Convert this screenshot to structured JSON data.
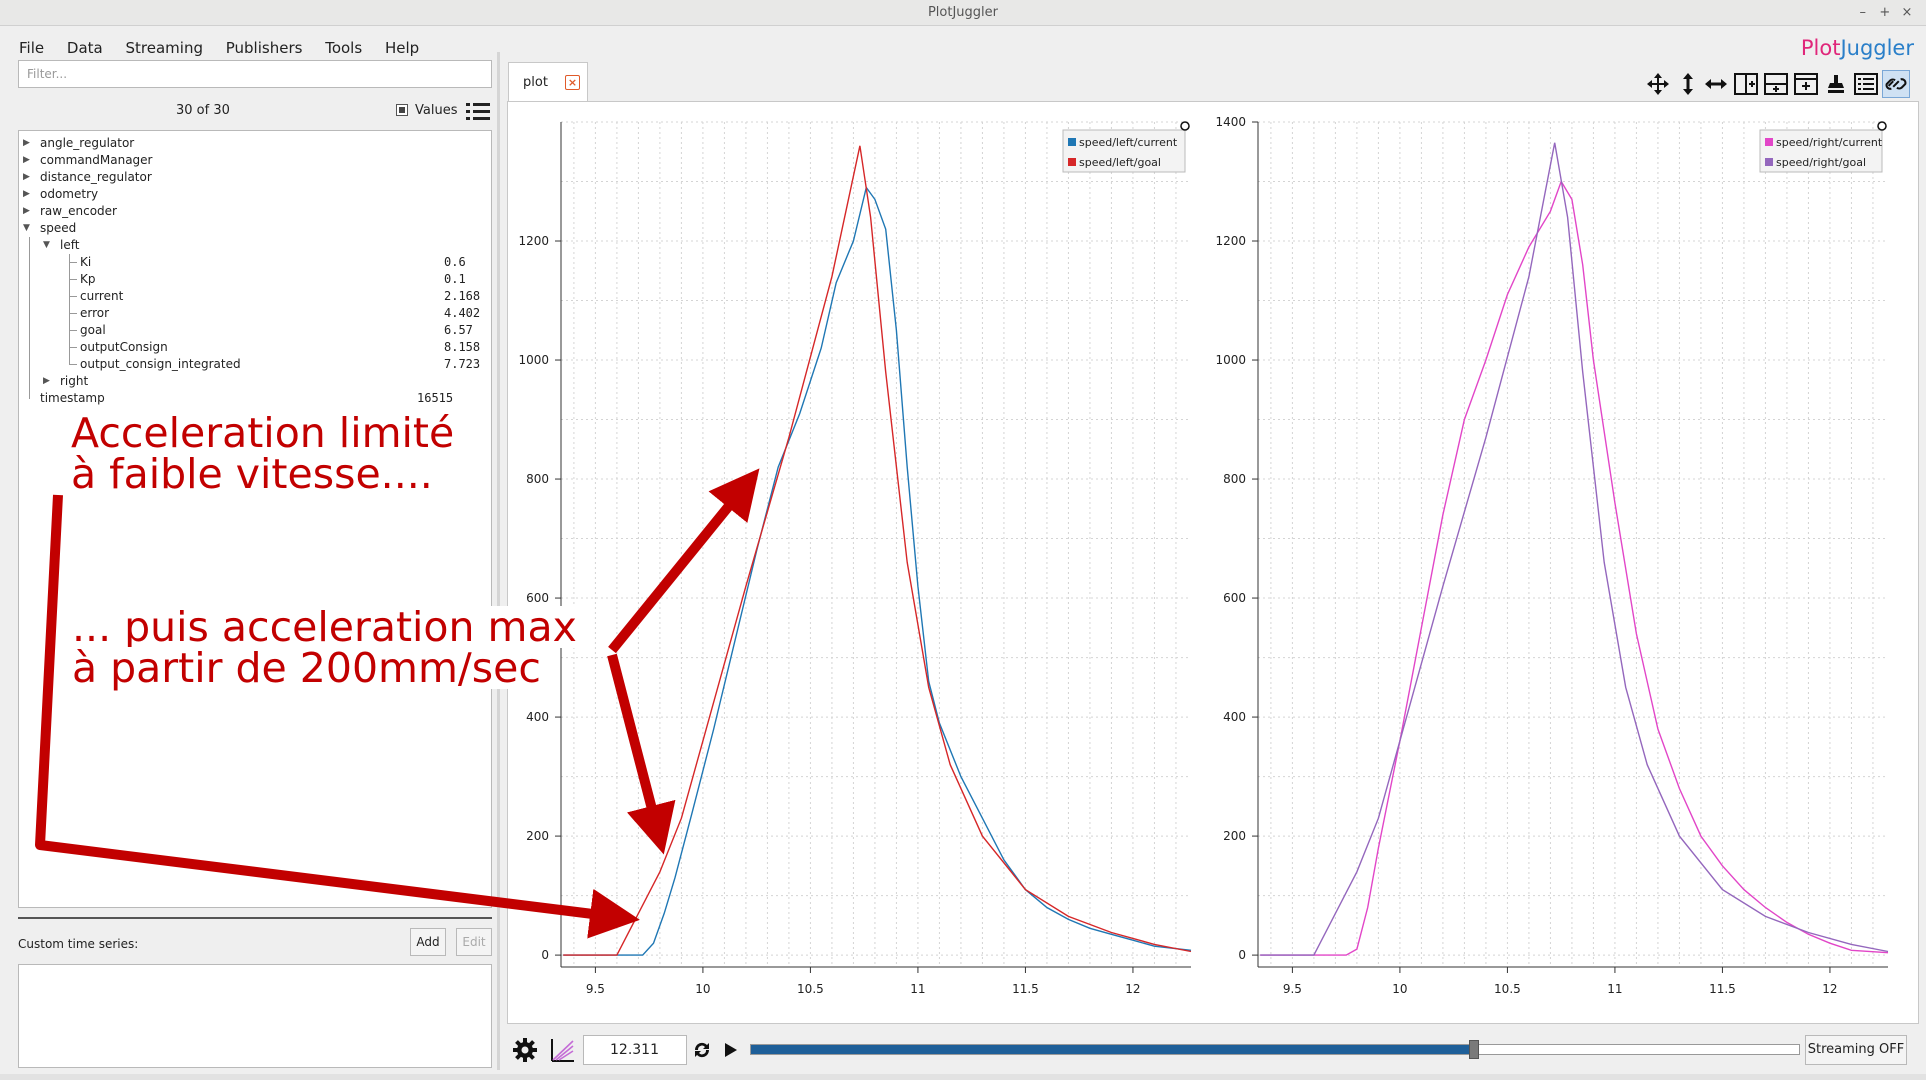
{
  "window": {
    "title": "PlotJuggler",
    "controls": [
      "–",
      "+",
      "×"
    ]
  },
  "menu": {
    "items": [
      "File",
      "Data",
      "Streaming",
      "Publishers",
      "Tools",
      "Help"
    ]
  },
  "brand": {
    "part1": "Plot",
    "part2": "Juggler"
  },
  "sidebar": {
    "filter_placeholder": "Filter...",
    "count": "30 of 30",
    "values_label": "Values",
    "values_checked": true,
    "tree": [
      {
        "label": "angle_regulator",
        "depth": 0,
        "expander": "collapsed"
      },
      {
        "label": "commandManager",
        "depth": 0,
        "expander": "collapsed"
      },
      {
        "label": "distance_regulator",
        "depth": 0,
        "expander": "collapsed"
      },
      {
        "label": "odometry",
        "depth": 0,
        "expander": "collapsed"
      },
      {
        "label": "raw_encoder",
        "depth": 0,
        "expander": "collapsed"
      },
      {
        "label": "speed",
        "depth": 0,
        "expander": "expanded"
      },
      {
        "label": "left",
        "depth": 1,
        "expander": "expanded"
      },
      {
        "label": "Ki",
        "depth": 2,
        "value": "0.6"
      },
      {
        "label": "Kp",
        "depth": 2,
        "value": "0.1"
      },
      {
        "label": "current",
        "depth": 2,
        "value": "2.168"
      },
      {
        "label": "error",
        "depth": 2,
        "value": "4.402"
      },
      {
        "label": "goal",
        "depth": 2,
        "value": "6.57"
      },
      {
        "label": "outputConsign",
        "depth": 2,
        "value": "8.158"
      },
      {
        "label": "output_consign_integrated",
        "depth": 2,
        "value": "7.723"
      },
      {
        "label": "right",
        "depth": 1,
        "expander": "collapsed"
      },
      {
        "label": "timestamp",
        "depth": 0,
        "value": "16515"
      }
    ],
    "custom_series_label": "Custom time series:",
    "add_label": "Add",
    "edit_label": "Edit"
  },
  "tab": {
    "label": "plot",
    "close_icon": "close-icon"
  },
  "toolbar": {
    "icons": [
      "move-icon",
      "zoom-vertical-icon",
      "zoom-horizontal-icon",
      "split-horizontal-icon",
      "split-vertical-icon",
      "add-plot-icon",
      "clear-icon",
      "legend-icon",
      "link-icon"
    ]
  },
  "annotations": {
    "text1_line1": "Acceleration limité",
    "text1_line2": "à faible vitesse....",
    "text2_line1": "... puis acceleration max",
    "text2_line2": "à partir de 200mm/sec",
    "color": "#c20000"
  },
  "playback": {
    "time_value": "12.311",
    "slider_position": 0.69,
    "streaming_label": "Streaming OFF",
    "icons": [
      "settings-icon",
      "time-offset-icon",
      "loop-icon",
      "play-icon"
    ]
  },
  "chart_data": [
    {
      "type": "line",
      "xlim": [
        9.34,
        12.27
      ],
      "ylim": [
        -20,
        1400
      ],
      "x_ticks": [
        9.5,
        10,
        10.5,
        11,
        11.5,
        12
      ],
      "y_ticks": [
        0,
        200,
        400,
        600,
        800,
        1000,
        1200
      ],
      "grid": true,
      "legend_position": "top-right",
      "series": [
        {
          "name": "speed/left/current",
          "color": "#1f77b4",
          "x": [
            9.35,
            9.65,
            9.72,
            9.77,
            9.82,
            9.87,
            9.95,
            10.05,
            10.15,
            10.25,
            10.35,
            10.45,
            10.55,
            10.62,
            10.7,
            10.76,
            10.8,
            10.85,
            10.9,
            10.95,
            11.0,
            11.05,
            11.1,
            11.2,
            11.3,
            11.4,
            11.5,
            11.6,
            11.7,
            11.8,
            11.9,
            12.0,
            12.1,
            12.27
          ],
          "y": [
            0,
            0,
            0,
            20,
            70,
            130,
            240,
            380,
            530,
            680,
            820,
            910,
            1020,
            1130,
            1200,
            1290,
            1270,
            1220,
            1050,
            820,
            620,
            460,
            390,
            300,
            230,
            160,
            110,
            80,
            60,
            45,
            35,
            25,
            15,
            8
          ]
        },
        {
          "name": "speed/left/goal",
          "color": "#d62728",
          "x": [
            9.35,
            9.6,
            9.7,
            9.8,
            9.9,
            10.0,
            10.2,
            10.4,
            10.6,
            10.73,
            10.78,
            10.85,
            10.95,
            11.05,
            11.15,
            11.3,
            11.5,
            11.7,
            11.9,
            12.1,
            12.27
          ],
          "y": [
            0,
            0,
            70,
            140,
            230,
            360,
            620,
            870,
            1140,
            1360,
            1240,
            980,
            660,
            450,
            320,
            200,
            110,
            65,
            38,
            18,
            6
          ]
        }
      ]
    },
    {
      "type": "line",
      "xlim": [
        9.34,
        12.27
      ],
      "ylim": [
        -20,
        1400
      ],
      "x_ticks": [
        9.5,
        10,
        10.5,
        11,
        11.5,
        12
      ],
      "y_ticks": [
        0,
        200,
        400,
        600,
        800,
        1000,
        1200,
        1400
      ],
      "grid": true,
      "legend_position": "top-right",
      "series": [
        {
          "name": "speed/right/current",
          "color": "#e246c8",
          "x": [
            9.35,
            9.75,
            9.8,
            9.85,
            9.9,
            10.0,
            10.1,
            10.2,
            10.3,
            10.4,
            10.5,
            10.6,
            10.7,
            10.75,
            10.8,
            10.85,
            10.9,
            11.0,
            11.1,
            11.2,
            11.3,
            11.4,
            11.5,
            11.6,
            11.7,
            11.8,
            11.9,
            12.0,
            12.1,
            12.27
          ],
          "y": [
            0,
            0,
            10,
            80,
            180,
            360,
            550,
            740,
            900,
            1000,
            1110,
            1190,
            1250,
            1300,
            1270,
            1160,
            1000,
            760,
            540,
            380,
            280,
            200,
            150,
            110,
            80,
            55,
            35,
            20,
            8,
            4
          ]
        },
        {
          "name": "speed/right/goal",
          "color": "#9467bd",
          "x": [
            9.35,
            9.6,
            9.7,
            9.8,
            9.9,
            10.0,
            10.2,
            10.4,
            10.6,
            10.72,
            10.78,
            10.85,
            10.95,
            11.05,
            11.15,
            11.3,
            11.5,
            11.7,
            11.9,
            12.1,
            12.27
          ],
          "y": [
            0,
            0,
            70,
            140,
            230,
            360,
            620,
            870,
            1140,
            1365,
            1240,
            980,
            660,
            450,
            320,
            200,
            110,
            65,
            38,
            18,
            6
          ]
        }
      ]
    }
  ]
}
